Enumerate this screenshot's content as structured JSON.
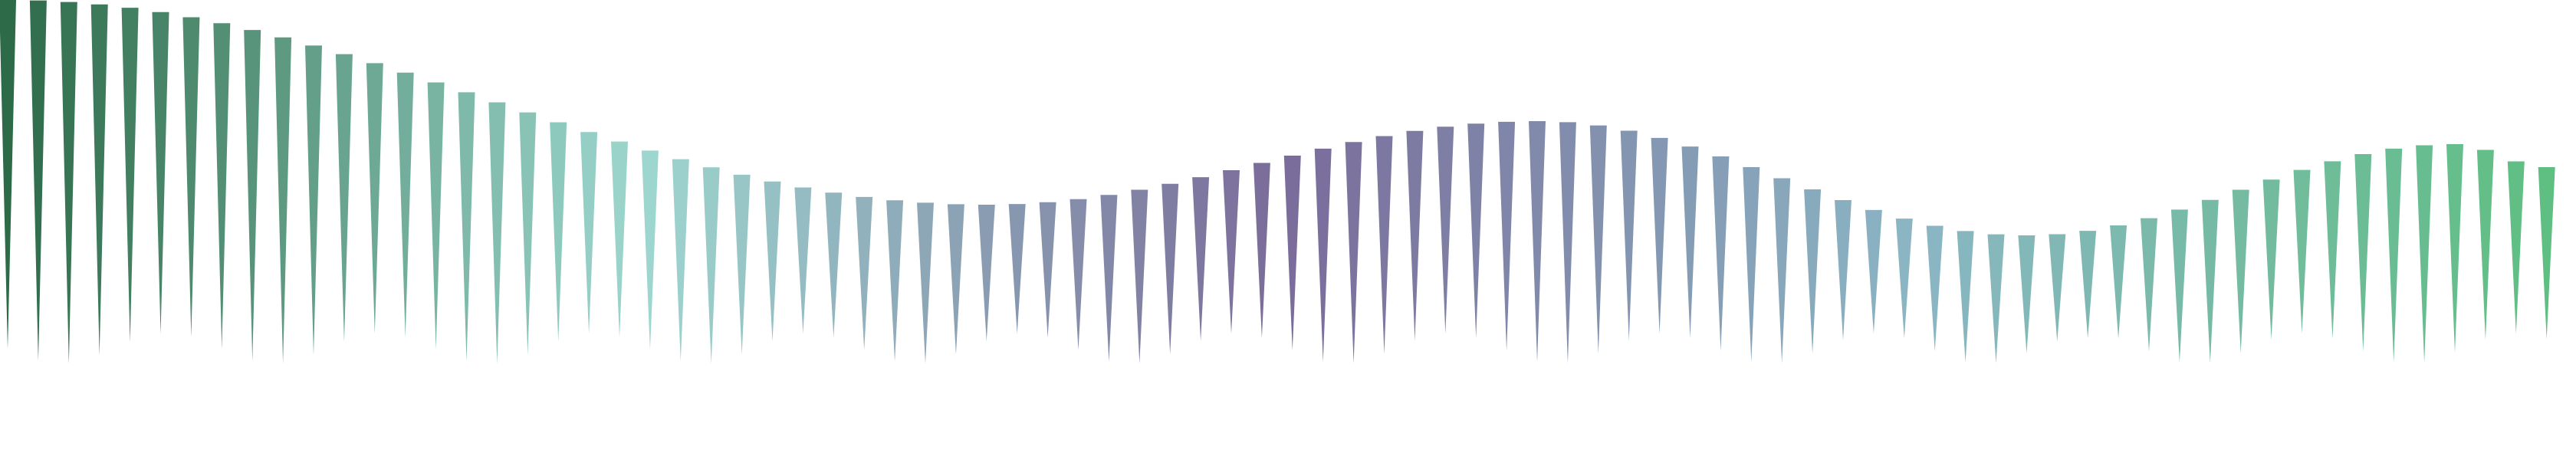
{
  "graphic": {
    "kind": "decorative-spike-wave",
    "spike_count": 84,
    "color_stops": [
      "#2d6a47",
      "#9dd7cf",
      "#7a6b9a",
      "#8bb6c4",
      "#5fbf82"
    ]
  }
}
